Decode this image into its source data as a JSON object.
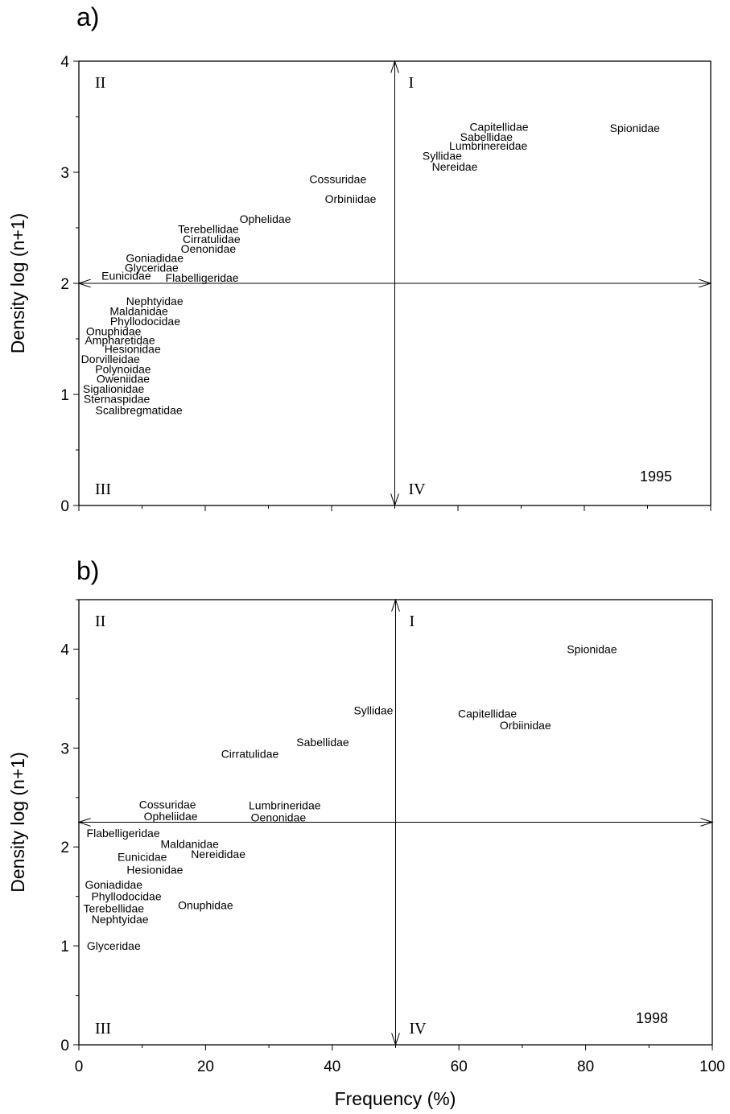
{
  "chart_data": [
    {
      "type": "scatter",
      "panel_label": "a)",
      "year_label": "1995",
      "xlabel": "",
      "ylabel": "Density log (n+1)",
      "xlim": [
        0,
        100
      ],
      "ylim": [
        0,
        4
      ],
      "xticks": [],
      "yticks": [
        "0",
        "1",
        "2",
        "3",
        "4"
      ],
      "ref_x": 50,
      "ref_y": 2,
      "quadrants": {
        "I": "I",
        "II": "II",
        "III": "III",
        "IV": "IV"
      },
      "points": [
        {
          "label": "Capitellidae",
          "x": 66.5,
          "y": 3.41
        },
        {
          "label": "Spionidae",
          "x": 88,
          "y": 3.4
        },
        {
          "label": "Sabellidae",
          "x": 64.5,
          "y": 3.32
        },
        {
          "label": "Lumbrinereidae",
          "x": 64.8,
          "y": 3.24
        },
        {
          "label": "Syllidae",
          "x": 57.5,
          "y": 3.15
        },
        {
          "label": "Nereidae",
          "x": 59.5,
          "y": 3.05
        },
        {
          "label": "Cossuridae",
          "x": 41,
          "y": 2.94
        },
        {
          "label": "Orbiniidae",
          "x": 43,
          "y": 2.76
        },
        {
          "label": "Ophelidae",
          "x": 29.5,
          "y": 2.58
        },
        {
          "label": "Terebellidae",
          "x": 20.5,
          "y": 2.49
        },
        {
          "label": "Cirratulidae",
          "x": 21,
          "y": 2.4
        },
        {
          "label": "Oenonidae",
          "x": 20.5,
          "y": 2.31
        },
        {
          "label": "Goniadidae",
          "x": 12,
          "y": 2.23
        },
        {
          "label": "Glyceridae",
          "x": 11.5,
          "y": 2.14
        },
        {
          "label": "Eunicidae",
          "x": 7.5,
          "y": 2.07
        },
        {
          "label": "Flabelligeridae",
          "x": 19.5,
          "y": 2.05
        },
        {
          "label": "Nephtyidae",
          "x": 12,
          "y": 1.84
        },
        {
          "label": "Maldanidae",
          "x": 9.5,
          "y": 1.75
        },
        {
          "label": "Phyllodocidae",
          "x": 10.5,
          "y": 1.66
        },
        {
          "label": "Onuphidae",
          "x": 5.5,
          "y": 1.57
        },
        {
          "label": "Ampharetidae",
          "x": 6.5,
          "y": 1.49
        },
        {
          "label": "Hesionidae",
          "x": 8.5,
          "y": 1.41
        },
        {
          "label": "Dorvilleidae",
          "x": 5,
          "y": 1.32
        },
        {
          "label": "Polynoidae",
          "x": 7,
          "y": 1.23
        },
        {
          "label": "Oweniidae",
          "x": 7,
          "y": 1.14
        },
        {
          "label": "Sigalionidae",
          "x": 5.5,
          "y": 1.05
        },
        {
          "label": "Sternaspidae",
          "x": 6,
          "y": 0.96
        },
        {
          "label": "Scalibregmatidae",
          "x": 9.5,
          "y": 0.86
        }
      ]
    },
    {
      "type": "scatter",
      "panel_label": "b)",
      "year_label": "1998",
      "xlabel": "Frequency (%)",
      "ylabel": "Density log (n+1)",
      "xlim": [
        0,
        100
      ],
      "ylim": [
        0,
        4.5
      ],
      "xticks": [
        "0",
        "20",
        "40",
        "60",
        "80",
        "100"
      ],
      "yticks": [
        "0",
        "1",
        "2",
        "3",
        "4"
      ],
      "ref_x": 50,
      "ref_y": 2.25,
      "quadrants": {
        "I": "I",
        "II": "II",
        "III": "III",
        "IV": "IV"
      },
      "points": [
        {
          "label": "Spionidae",
          "x": 81,
          "y": 4.0
        },
        {
          "label": "Syllidae",
          "x": 46.5,
          "y": 3.38
        },
        {
          "label": "Capitellidae",
          "x": 64.5,
          "y": 3.35
        },
        {
          "label": "Orbiinidae",
          "x": 70.5,
          "y": 3.23
        },
        {
          "label": "Sabellidae",
          "x": 38.5,
          "y": 3.06
        },
        {
          "label": "Cirratulidae",
          "x": 27,
          "y": 2.94
        },
        {
          "label": "Cossuridae",
          "x": 14,
          "y": 2.43
        },
        {
          "label": "Lumbrineridae",
          "x": 32.5,
          "y": 2.42
        },
        {
          "label": "Opheliidae",
          "x": 14.5,
          "y": 2.31
        },
        {
          "label": "Oenonidae",
          "x": 31.5,
          "y": 2.3
        },
        {
          "label": "Flabelligeridae",
          "x": 7,
          "y": 2.14
        },
        {
          "label": "Maldanidae",
          "x": 17.5,
          "y": 2.03
        },
        {
          "label": "Nereididae",
          "x": 22,
          "y": 1.93
        },
        {
          "label": "Eunicidae",
          "x": 10,
          "y": 1.9
        },
        {
          "label": "Hesionidae",
          "x": 12,
          "y": 1.77
        },
        {
          "label": "Goniadidae",
          "x": 5.5,
          "y": 1.62
        },
        {
          "label": "Phyllodocidae",
          "x": 7.5,
          "y": 1.5
        },
        {
          "label": "Onuphidae",
          "x": 20,
          "y": 1.41
        },
        {
          "label": "Terebellidae",
          "x": 5.5,
          "y": 1.38
        },
        {
          "label": "Nephtyidae",
          "x": 6.5,
          "y": 1.27
        },
        {
          "label": "Glyceridae",
          "x": 5.5,
          "y": 1.0
        }
      ]
    }
  ]
}
